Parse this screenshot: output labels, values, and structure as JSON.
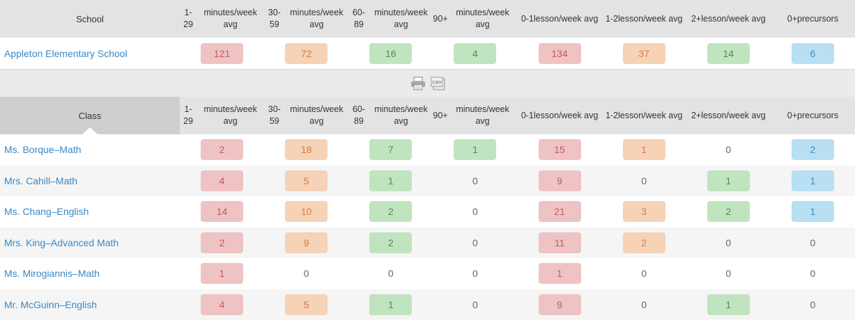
{
  "colors": {
    "red": {
      "bg": "#efc3c3",
      "fg": "#c45a5a"
    },
    "orange": {
      "bg": "#f6d2b7",
      "fg": "#d67c3e"
    },
    "green": {
      "bg": "#bfe4bf",
      "fg": "#4f8d4f"
    },
    "blue": {
      "bg": "#b8dff2",
      "fg": "#3f91c4"
    }
  },
  "column_colors": [
    "red",
    "orange",
    "green",
    "green",
    "red",
    "orange",
    "green",
    "blue"
  ],
  "school_table": {
    "header": [
      "School",
      "1-29\nminutes/week avg",
      "30-59\nminutes/week avg",
      "60-89\nminutes/week avg",
      "90+\nminutes/week avg",
      "0-1\nlesson/week avg",
      "1-2\nlesson/week avg",
      "2+\nlesson/week avg",
      "0+\nprecursors"
    ],
    "rows": [
      {
        "name": "Appleton Elementary School",
        "values": [
          "121",
          "72",
          "16",
          "4",
          "134",
          "37",
          "14",
          "6"
        ]
      }
    ]
  },
  "toolbar": {
    "print_icon": "printer-icon",
    "csv_icon": "csv-export-icon",
    "csv_label": "CSV"
  },
  "class_table": {
    "header": [
      "Class",
      "1-29\nminutes/week avg",
      "30-59\nminutes/week avg",
      "60-89\nminutes/week avg",
      "90+\nminutes/week avg",
      "0-1\nlesson/week avg",
      "1-2\nlesson/week avg",
      "2+\nlesson/week avg",
      "0+\nprecursors"
    ],
    "rows": [
      {
        "name": "Ms. Borque–Math",
        "values": [
          "2",
          "18",
          "7",
          "1",
          "15",
          "1",
          "0",
          "2"
        ]
      },
      {
        "name": "Mrs. Cahill–Math",
        "values": [
          "4",
          "5",
          "1",
          "0",
          "9",
          "0",
          "1",
          "1"
        ]
      },
      {
        "name": "Ms. Chang–English",
        "values": [
          "14",
          "10",
          "2",
          "0",
          "21",
          "3",
          "2",
          "1"
        ]
      },
      {
        "name": "Mrs. King–Advanced Math",
        "values": [
          "2",
          "9",
          "2",
          "0",
          "11",
          "2",
          "0",
          "0"
        ]
      },
      {
        "name": "Ms. Mirogiannis–Math",
        "values": [
          "1",
          "0",
          "0",
          "0",
          "1",
          "0",
          "0",
          "0"
        ]
      },
      {
        "name": "Mr. McGuinn–English",
        "values": [
          "4",
          "5",
          "1",
          "0",
          "9",
          "0",
          "1",
          "0"
        ]
      }
    ]
  }
}
